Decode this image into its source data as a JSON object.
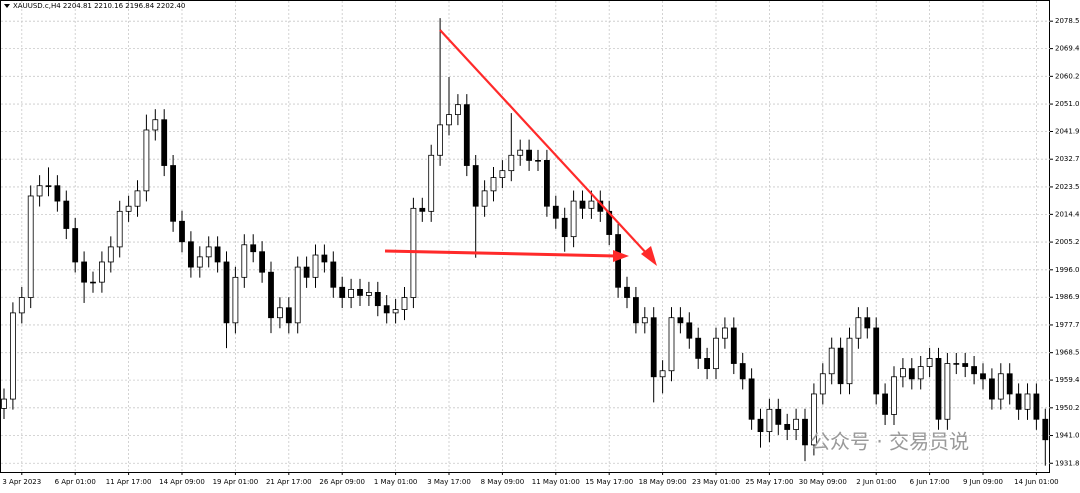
{
  "chart_data": {
    "type": "candlestick",
    "title": "XAUUSD.c,H4  2204.81 2210.16 2196.84 2202.40",
    "annotation": "公众号 · 交易员说",
    "grid": true,
    "bull_color": "#ffffff",
    "bear_color": "#000000",
    "ylim": [
      1928.9,
      2085.2
    ],
    "yticks": [
      {
        "value": 2078.5,
        "label": "2078.50"
      },
      {
        "value": 2069.4,
        "label": "2069.40"
      },
      {
        "value": 2060.2,
        "label": "2060.20"
      },
      {
        "value": 2051.0,
        "label": "2051.00"
      },
      {
        "value": 2041.9,
        "label": "2041.90"
      },
      {
        "value": 2032.7,
        "label": "2032.70"
      },
      {
        "value": 2023.5,
        "label": "2023.50"
      },
      {
        "value": 2014.4,
        "label": "2014.40"
      },
      {
        "value": 2005.2,
        "label": "2005.20"
      },
      {
        "value": 1996.0,
        "label": "1996.00"
      },
      {
        "value": 1986.9,
        "label": "1986.90"
      },
      {
        "value": 1977.7,
        "label": "1977.70"
      },
      {
        "value": 1968.5,
        "label": "1968.50"
      },
      {
        "value": 1959.4,
        "label": "1959.40"
      },
      {
        "value": 1950.2,
        "label": "1950.20"
      },
      {
        "value": 1941.0,
        "label": "1941.00"
      },
      {
        "value": 1931.8,
        "label": "1931.80"
      }
    ],
    "categories": [
      null,
      null,
      "3 Apr 2023",
      null,
      null,
      null,
      null,
      null,
      "6 Apr 01:00",
      null,
      null,
      null,
      null,
      null,
      "11 Apr 17:00",
      null,
      null,
      null,
      null,
      null,
      "14 Apr 09:00",
      null,
      null,
      null,
      null,
      null,
      "19 Apr 01:00",
      null,
      null,
      null,
      null,
      null,
      "21 Apr 17:00",
      null,
      null,
      null,
      null,
      null,
      "26 Apr 09:00",
      null,
      null,
      null,
      null,
      null,
      "1 May 01:00",
      null,
      null,
      null,
      null,
      null,
      "3 May 17:00",
      null,
      null,
      null,
      null,
      null,
      "8 May 09:00",
      null,
      null,
      null,
      null,
      null,
      "11 May 01:00",
      null,
      null,
      null,
      null,
      null,
      "15 May 17:00",
      null,
      null,
      null,
      null,
      null,
      "18 May 09:00",
      null,
      null,
      null,
      null,
      null,
      "23 May 01:00",
      null,
      null,
      null,
      null,
      null,
      "25 May 17:00",
      null,
      null,
      null,
      null,
      null,
      "30 May 09:00",
      null,
      null,
      null,
      null,
      null,
      "2 Jun 01:00",
      null,
      null,
      null,
      null,
      null,
      "6 Jun 17:00",
      null,
      null,
      null,
      null,
      null,
      "9 Jun 09:00",
      null,
      null,
      null,
      null,
      null,
      "14 Jun 01:00",
      null
    ],
    "open": [
      1950.0,
      1953.1,
      1981.7,
      1986.8,
      2020.5,
      2023.9,
      2023.9,
      2018.8,
      2009.7,
      1998.6,
      1991.9,
      1991.9,
      1998.6,
      2003.6,
      2015.4,
      2017.1,
      2022.2,
      2042.4,
      2045.8,
      2030.6,
      2012.1,
      2005.3,
      1996.9,
      2000.3,
      2003.6,
      1998.6,
      1978.4,
      1993.5,
      2004.3,
      2002.0,
      1995.2,
      1980.1,
      1983.4,
      1978.4,
      1996.9,
      1993.5,
      2000.9,
      1998.6,
      1990.2,
      1986.8,
      1989.5,
      1987.5,
      1988.5,
      1984.1,
      1981.7,
      1982.8,
      1986.8,
      2016.4,
      2015.4,
      2034.0,
      2044.1,
      2047.5,
      2050.8,
      2030.6,
      2017.1,
      2022.2,
      2026.6,
      2028.9,
      2034.0,
      2035.7,
      2032.3,
      2032.3,
      2017.1,
      2013.1,
      2007.0,
      2018.8,
      2016.4,
      2018.8,
      2015.4,
      2007.7,
      1990.2,
      1986.8,
      1978.4,
      1980.1,
      1960.5,
      1962.5,
      1980.1,
      1978.4,
      1973.3,
      1966.6,
      1963.2,
      1973.3,
      1976.7,
      1964.9,
      1959.8,
      1946.4,
      1942.3,
      1949.7,
      1944.7,
      1943.0,
      1946.4,
      1937.9,
      1954.8,
      1961.5,
      1970.0,
      1958.2,
      1973.3,
      1980.1,
      1976.7,
      1954.8,
      1948.0,
      1960.5,
      1963.2,
      1959.8,
      1963.9,
      1966.6,
      1946.4,
      1964.9,
      1964.9,
      1963.9,
      1961.5,
      1959.8,
      1953.1,
      1961.5,
      1954.8,
      1949.7,
      1954.8,
      1946.4
    ],
    "high": [
      1956.6,
      1985.2,
      1990.3,
      2024.0,
      2027.4,
      2030.0,
      2027.4,
      2022.3,
      2013.2,
      2002.1,
      1995.4,
      2002.1,
      2007.1,
      2018.9,
      2020.6,
      2025.7,
      2047.5,
      2049.3,
      2049.3,
      2034.1,
      2015.6,
      2008.8,
      2003.8,
      2007.1,
      2007.1,
      2002.1,
      1997.0,
      2007.8,
      2007.8,
      2005.5,
      1998.7,
      1986.9,
      1986.9,
      2000.4,
      2000.4,
      2004.4,
      2004.4,
      2002.1,
      1993.7,
      1993.0,
      1993.0,
      1992.0,
      1992.0,
      1987.6,
      1986.3,
      1990.3,
      2019.9,
      2019.9,
      2037.5,
      2079.5,
      2060.0,
      2054.3,
      2054.3,
      2034.1,
      2025.7,
      2030.1,
      2032.4,
      2048.0,
      2039.2,
      2039.2,
      2035.8,
      2035.8,
      2020.6,
      2016.6,
      2022.3,
      2022.3,
      2022.3,
      2022.3,
      2018.9,
      2011.2,
      1993.7,
      1990.3,
      1983.6,
      1983.6,
      1966.0,
      1983.6,
      1983.6,
      1981.9,
      1976.8,
      1970.1,
      1976.8,
      1980.2,
      1980.2,
      1968.4,
      1963.3,
      1949.9,
      1953.2,
      1953.2,
      1948.2,
      1949.9,
      1949.9,
      1958.3,
      1965.0,
      1973.5,
      1973.5,
      1976.8,
      1983.6,
      1983.6,
      1980.2,
      1958.3,
      1964.0,
      1966.7,
      1966.7,
      1967.4,
      1970.1,
      1970.1,
      1968.4,
      1968.4,
      1968.4,
      1967.4,
      1965.0,
      1963.3,
      1965.0,
      1965.0,
      1958.3,
      1958.3,
      1958.3,
      1949.9
    ],
    "low": [
      1946.5,
      1949.6,
      1978.2,
      1983.3,
      2017.0,
      2020.4,
      2015.3,
      2006.2,
      1995.1,
      1985.0,
      1988.4,
      1988.4,
      1995.1,
      2000.1,
      2011.9,
      2013.6,
      2018.7,
      2038.9,
      2027.1,
      2008.6,
      2001.8,
      1993.4,
      1993.4,
      1996.8,
      1995.1,
      1970.0,
      1974.9,
      1990.0,
      1998.5,
      1991.7,
      1975.0,
      1976.6,
      1974.9,
      1974.9,
      1990.0,
      1990.0,
      1995.1,
      1986.7,
      1983.3,
      1983.3,
      1984.0,
      1984.0,
      1980.6,
      1978.2,
      1978.2,
      1979.3,
      1983.3,
      2011.9,
      2011.9,
      2030.5,
      2040.6,
      2044.0,
      2027.1,
      2000.0,
      2013.6,
      2018.7,
      2023.1,
      2025.4,
      2030.5,
      2028.8,
      2028.8,
      2013.6,
      2009.6,
      2002.0,
      2003.5,
      2012.9,
      2012.9,
      2011.9,
      2004.2,
      1986.7,
      1983.3,
      1974.9,
      1974.9,
      1952.0,
      1955.0,
      1959.0,
      1974.9,
      1969.8,
      1963.1,
      1959.7,
      1959.7,
      1969.8,
      1961.4,
      1956.3,
      1942.9,
      1937.0,
      1938.8,
      1941.2,
      1939.5,
      1939.5,
      1932.5,
      1934.4,
      1951.3,
      1958.0,
      1954.7,
      1954.7,
      1969.8,
      1973.2,
      1951.3,
      1944.5,
      1944.5,
      1957.0,
      1956.3,
      1956.3,
      1960.4,
      1942.9,
      1942.9,
      1961.4,
      1960.4,
      1958.0,
      1956.3,
      1949.6,
      1949.6,
      1951.3,
      1946.2,
      1946.2,
      1942.9,
      1931.0
    ],
    "close": [
      1953.1,
      1981.7,
      1986.8,
      2020.5,
      2023.9,
      2023.9,
      2018.8,
      2009.7,
      1998.6,
      1991.9,
      1991.9,
      1998.6,
      2003.6,
      2015.4,
      2017.1,
      2022.2,
      2042.4,
      2045.8,
      2030.6,
      2012.1,
      2005.3,
      1996.9,
      2000.3,
      2003.6,
      1998.6,
      1978.4,
      1993.5,
      2004.3,
      2002.0,
      1995.2,
      1980.1,
      1983.4,
      1978.4,
      1996.9,
      1993.5,
      2000.9,
      1998.6,
      1990.2,
      1986.8,
      1989.5,
      1987.5,
      1988.5,
      1984.1,
      1981.7,
      1982.8,
      1986.8,
      2016.4,
      2015.4,
      2034.0,
      2044.1,
      2047.5,
      2050.8,
      2030.6,
      2017.1,
      2022.2,
      2026.6,
      2028.9,
      2034.0,
      2035.7,
      2032.3,
      2032.3,
      2017.1,
      2013.1,
      2007.0,
      2018.8,
      2016.4,
      2018.8,
      2015.4,
      2007.7,
      1990.2,
      1986.8,
      1978.4,
      1980.1,
      1960.5,
      1962.5,
      1980.1,
      1978.4,
      1973.3,
      1966.6,
      1963.2,
      1973.3,
      1976.7,
      1964.9,
      1959.8,
      1946.4,
      1942.3,
      1949.7,
      1944.7,
      1943.0,
      1946.4,
      1937.9,
      1954.8,
      1961.5,
      1970.0,
      1958.2,
      1973.3,
      1980.1,
      1976.7,
      1954.8,
      1948.0,
      1960.5,
      1963.2,
      1959.8,
      1963.9,
      1966.6,
      1946.4,
      1964.9,
      1964.9,
      1963.9,
      1961.5,
      1959.8,
      1953.1,
      1961.5,
      1954.8,
      1949.7,
      1954.8,
      1946.4,
      1939.6
    ]
  }
}
